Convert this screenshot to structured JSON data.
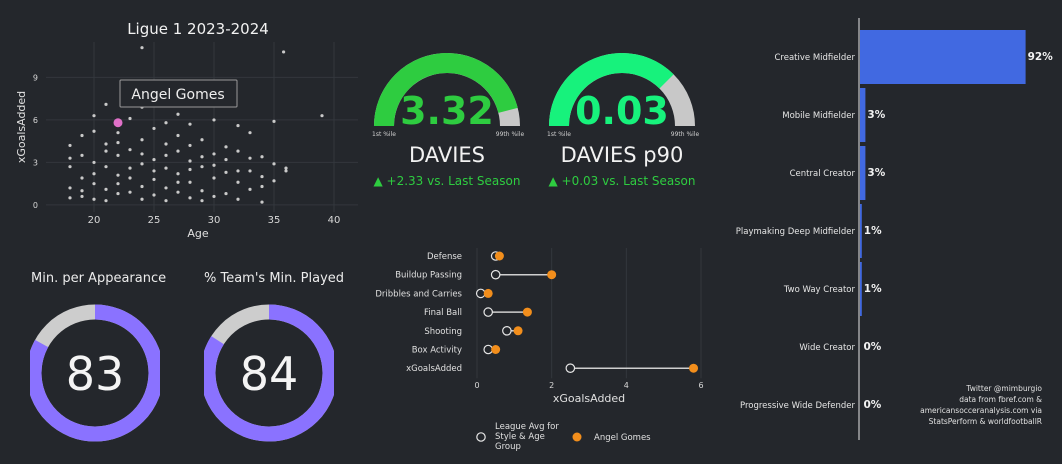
{
  "scatter": {
    "title": "Ligue 1 2023-2024",
    "xlabel": "Age",
    "ylabel": "xGoalsAdded",
    "xticks": [
      20,
      25,
      30,
      35,
      40
    ],
    "yticks": [
      0,
      3,
      6,
      9
    ],
    "highlight_label": "Angel Gomes"
  },
  "gauges": [
    {
      "value": "3.32",
      "name": "DAVIES",
      "delta": "▲ +2.33 vs. Last Season",
      "low": "1st %ile",
      "high": "99th %ile",
      "pct": 0.92,
      "color": "#2ecc40"
    },
    {
      "value": "0.03",
      "name": "DAVIES p90",
      "delta": "▲ +0.03 vs. Last Season",
      "low": "1st %ile",
      "high": "99th %ile",
      "pct": 0.75,
      "color": "#17f27c"
    }
  ],
  "donuts": [
    {
      "title": "Min. per Appearance",
      "value": "83",
      "pct": 0.83
    },
    {
      "title": "% Team's Min. Played",
      "value": "84",
      "pct": 0.84
    }
  ],
  "credits": [
    "Twitter @mimburgio",
    "data from fbref.com &",
    "americansocceranalysis.com via",
    "StatsPerform & worldfootballR"
  ],
  "colors": {
    "accent": "#8a72ff",
    "orange": "#f28e1c",
    "bar": "#4169e1",
    "pink": "#e070c8"
  },
  "chart_data": [
    {
      "type": "scatter",
      "title": "Ligue 1 2023-2024",
      "xlabel": "Age",
      "ylabel": "xGoalsAdded",
      "xlim": [
        16,
        42
      ],
      "ylim": [
        -0.5,
        11.5
      ],
      "highlight": {
        "name": "Angel Gomes",
        "x": 22,
        "y": 5.8
      },
      "points": [
        {
          "x": 18,
          "y": 2.7
        },
        {
          "x": 18,
          "y": 1.2
        },
        {
          "x": 18,
          "y": 4.2
        },
        {
          "x": 18,
          "y": 0.5
        },
        {
          "x": 18,
          "y": 3.3
        },
        {
          "x": 19,
          "y": 1.9
        },
        {
          "x": 19,
          "y": 0.6
        },
        {
          "x": 19,
          "y": 3.5
        },
        {
          "x": 19,
          "y": 4.9
        },
        {
          "x": 19,
          "y": 1.0
        },
        {
          "x": 20,
          "y": 2.2
        },
        {
          "x": 20,
          "y": 0.4
        },
        {
          "x": 20,
          "y": 5.2
        },
        {
          "x": 20,
          "y": 3.0
        },
        {
          "x": 20,
          "y": 1.5
        },
        {
          "x": 20,
          "y": 6.3
        },
        {
          "x": 21,
          "y": 7.1
        },
        {
          "x": 21,
          "y": 4.3
        },
        {
          "x": 21,
          "y": 2.7
        },
        {
          "x": 21,
          "y": 1.1
        },
        {
          "x": 21,
          "y": 0.3
        },
        {
          "x": 21,
          "y": 3.8
        },
        {
          "x": 22,
          "y": 5.1
        },
        {
          "x": 22,
          "y": 3.5
        },
        {
          "x": 22,
          "y": 2.1
        },
        {
          "x": 22,
          "y": 0.8
        },
        {
          "x": 22,
          "y": 4.4
        },
        {
          "x": 22,
          "y": 1.5
        },
        {
          "x": 23,
          "y": 6.1
        },
        {
          "x": 23,
          "y": 3.9
        },
        {
          "x": 23,
          "y": 2.6
        },
        {
          "x": 23,
          "y": 0.9
        },
        {
          "x": 23,
          "y": 7.4
        },
        {
          "x": 23,
          "y": 1.9
        },
        {
          "x": 24,
          "y": 11.1
        },
        {
          "x": 24,
          "y": 6.9
        },
        {
          "x": 24,
          "y": 4.6
        },
        {
          "x": 24,
          "y": 2.9
        },
        {
          "x": 24,
          "y": 1.3
        },
        {
          "x": 24,
          "y": 0.4
        },
        {
          "x": 24,
          "y": 3.6
        },
        {
          "x": 25,
          "y": 5.4
        },
        {
          "x": 25,
          "y": 3.2
        },
        {
          "x": 25,
          "y": 1.8
        },
        {
          "x": 25,
          "y": 0.7
        },
        {
          "x": 25,
          "y": 2.4
        },
        {
          "x": 26,
          "y": 4.3
        },
        {
          "x": 26,
          "y": 2.6
        },
        {
          "x": 26,
          "y": 1.2
        },
        {
          "x": 26,
          "y": 0.3
        },
        {
          "x": 26,
          "y": 3.5
        },
        {
          "x": 26,
          "y": 5.8
        },
        {
          "x": 27,
          "y": 6.4
        },
        {
          "x": 27,
          "y": 3.8
        },
        {
          "x": 27,
          "y": 2.2
        },
        {
          "x": 27,
          "y": 0.9
        },
        {
          "x": 27,
          "y": 4.9
        },
        {
          "x": 27,
          "y": 1.6
        },
        {
          "x": 28,
          "y": 5.7
        },
        {
          "x": 28,
          "y": 3.1
        },
        {
          "x": 28,
          "y": 1.6
        },
        {
          "x": 28,
          "y": 0.5
        },
        {
          "x": 28,
          "y": 4.2
        },
        {
          "x": 28,
          "y": 2.5
        },
        {
          "x": 29,
          "y": 4.6
        },
        {
          "x": 29,
          "y": 2.7
        },
        {
          "x": 29,
          "y": 1.0
        },
        {
          "x": 29,
          "y": 3.4
        },
        {
          "x": 29,
          "y": 0.3
        },
        {
          "x": 30,
          "y": 6.0
        },
        {
          "x": 30,
          "y": 3.6
        },
        {
          "x": 30,
          "y": 1.9
        },
        {
          "x": 30,
          "y": 0.6
        },
        {
          "x": 30,
          "y": 2.8
        },
        {
          "x": 31,
          "y": 7.1
        },
        {
          "x": 31,
          "y": 4.1
        },
        {
          "x": 31,
          "y": 2.3
        },
        {
          "x": 31,
          "y": 0.8
        },
        {
          "x": 31,
          "y": 3.2
        },
        {
          "x": 32,
          "y": 3.8
        },
        {
          "x": 32,
          "y": 1.6
        },
        {
          "x": 32,
          "y": 0.4
        },
        {
          "x": 32,
          "y": 2.4
        },
        {
          "x": 32,
          "y": 5.6
        },
        {
          "x": 33,
          "y": 5.1
        },
        {
          "x": 33,
          "y": 2.4
        },
        {
          "x": 33,
          "y": 1.1
        },
        {
          "x": 33,
          "y": 3.3
        },
        {
          "x": 34,
          "y": 3.4
        },
        {
          "x": 34,
          "y": 1.3
        },
        {
          "x": 34,
          "y": 2.0
        },
        {
          "x": 34,
          "y": 0.2
        },
        {
          "x": 35,
          "y": 5.9
        },
        {
          "x": 35,
          "y": 2.9
        },
        {
          "x": 35,
          "y": 1.7
        },
        {
          "x": 35.8,
          "y": 10.8
        },
        {
          "x": 36,
          "y": 2.6
        },
        {
          "x": 36,
          "y": 2.4
        },
        {
          "x": 39,
          "y": 6.3
        }
      ]
    },
    {
      "type": "dot",
      "xlabel": "xGoalsAdded",
      "xlim": [
        0,
        6
      ],
      "xticks": [
        0,
        2,
        4,
        6
      ],
      "categories": [
        "Defense",
        "Buildup Passing",
        "Dribbles and Carries",
        "Final Ball",
        "Shooting",
        "Box Activity",
        "xGoalsAdded"
      ],
      "series": [
        {
          "name": "League Avg for Style & Age Group",
          "values": [
            0.5,
            0.5,
            0.1,
            0.3,
            0.8,
            0.3,
            2.5
          ]
        },
        {
          "name": "Angel Gomes",
          "values": [
            0.6,
            2.0,
            0.3,
            1.35,
            1.1,
            0.5,
            5.8
          ]
        }
      ],
      "legend": [
        {
          "label": "League Avg for Style & Age Group",
          "lines": [
            "League Avg for",
            "Style & Age",
            "Group"
          ]
        },
        {
          "label": "Angel Gomes",
          "lines": [
            "Angel Gomes"
          ]
        }
      ]
    },
    {
      "type": "bar",
      "orientation": "horizontal",
      "categories": [
        "Creative Midfielder",
        "Mobile Midfielder",
        "Central Creator",
        "Playmaking Deep Midfielder",
        "Two Way Creator",
        "Wide Creator",
        "Progressive Wide Defender"
      ],
      "values": [
        92,
        3,
        3,
        1,
        1,
        0,
        0
      ],
      "labels": [
        "92%",
        "3%",
        "3%",
        "1%",
        "1%",
        "0%",
        "0%"
      ],
      "xlim": [
        0,
        100
      ]
    }
  ]
}
